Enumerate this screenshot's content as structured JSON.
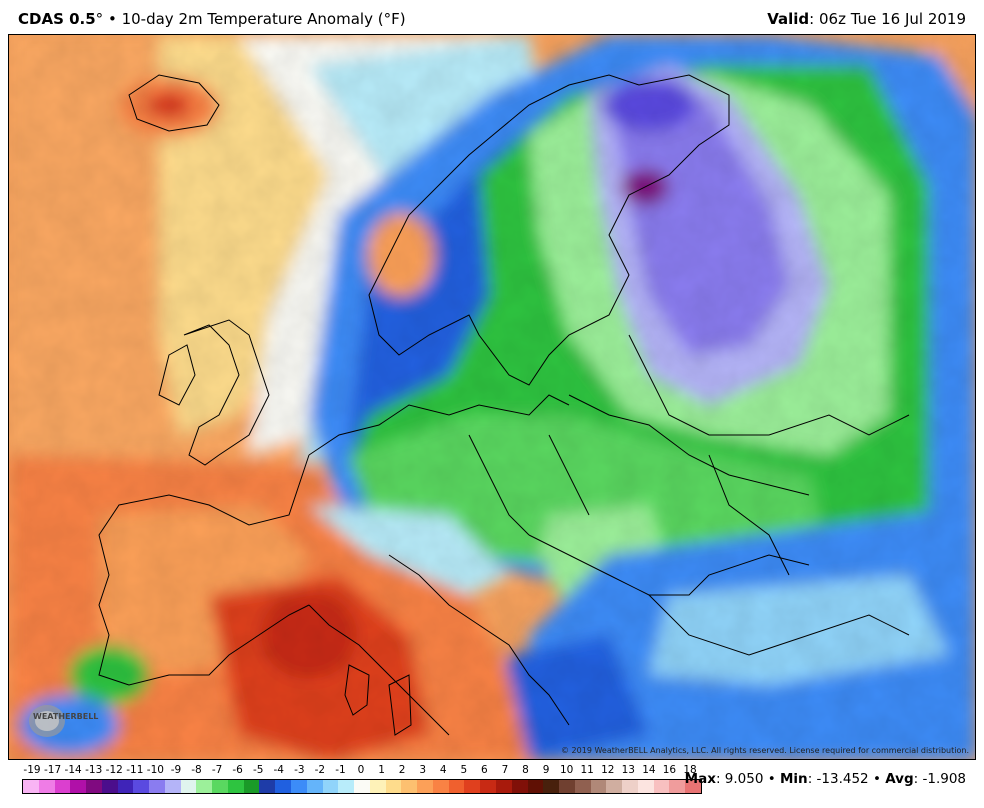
{
  "header": {
    "model": "CDAS 0.5",
    "degree": "°",
    "bullet": "•",
    "product": "10-day 2m Temperature Anomaly (°F)",
    "valid_label": "Valid",
    "valid_value": ": 06z Tue 16 Jul 2019"
  },
  "map": {
    "region": "Europe",
    "copyright": "© 2019 WeatherBELL Analytics, LLC. All rights reserved. License required for commercial distribution.",
    "logo_text": "WEATHERBELL",
    "logo_icon": "weatherbell-logo-icon",
    "colors": {
      "ocean_base": "#f9a35e",
      "warm": "#f97f3f",
      "hot": "#d9301c",
      "neutral": "#fbfbf6",
      "cool_light": "#b4ecf8",
      "cool": "#3a7cf0",
      "green": "#2ec440",
      "green_light": "#9df09a",
      "purple": "#7f62e8",
      "magenta_dark": "#80105a",
      "border_line": "#000000"
    }
  },
  "legend": {
    "ticks": [
      "-19",
      "-17",
      "-14",
      "-13",
      "-12",
      "-11",
      "-10",
      "-9",
      "-8",
      "-7",
      "-6",
      "-5",
      "-4",
      "-3",
      "-2",
      "-1",
      "0",
      "1",
      "2",
      "3",
      "4",
      "5",
      "6",
      "7",
      "8",
      "9",
      "10",
      "11",
      "12",
      "13",
      "14",
      "16",
      "18"
    ],
    "colors": [
      "#f9b4f4",
      "#ef7ce6",
      "#db3fcf",
      "#b010a8",
      "#800a80",
      "#4b0e8c",
      "#3f24b8",
      "#5a4ae0",
      "#8a7cf0",
      "#b4b4f8",
      "#e0f4ee",
      "#9cf09a",
      "#5ad860",
      "#2ec440",
      "#1a9a28",
      "#1e3ca8",
      "#2060e0",
      "#3c8cf8",
      "#64b4fa",
      "#90d4fa",
      "#b8ecfa",
      "#fbfbf6",
      "#fef2b8",
      "#fedc8c",
      "#fdc070",
      "#fca058",
      "#f98244",
      "#f0602e",
      "#e0401e",
      "#c82a14",
      "#a81a0c",
      "#801008",
      "#601004",
      "#48200c",
      "#704030",
      "#906050",
      "#b08878",
      "#d0aea0",
      "#eed0c8",
      "#fce4e0",
      "#f8c0c0",
      "#f09c9c",
      "#e87474"
    ]
  },
  "stats": {
    "max_label": "Max",
    "max_value": ": 9.050",
    "min_label": "Min",
    "min_value": ": -13.452",
    "avg_label": "Avg",
    "avg_value": ": -1.908",
    "sep": "•"
  }
}
